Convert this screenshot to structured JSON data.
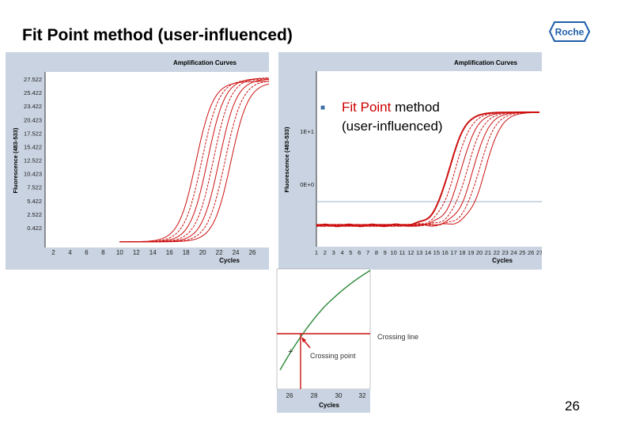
{
  "slide": {
    "title": "Fit Point method (user-influenced)",
    "page_number": "26",
    "logo_text": "Roche",
    "bullet": {
      "part1": "Fit Point",
      "part2": " method",
      "line2": "(user-influenced)"
    },
    "colors": {
      "curve": "#cc1111",
      "panel_bg": "#c9d3e1",
      "plot_bg": "#ffffff",
      "title_text": "#000000",
      "logo": "#1f5fa8"
    }
  },
  "chart_data": [
    {
      "type": "line",
      "title": "Amplification Curves",
      "xlabel": "Cycles",
      "ylabel": "Fluorescence (483-533)",
      "x_ticks": [
        "2",
        "4",
        "6",
        "8",
        "10",
        "12",
        "14",
        "16",
        "18",
        "20",
        "22",
        "24",
        "26"
      ],
      "y_ticks": [
        "27.522",
        "25.422",
        "23.422",
        "20.423",
        "17.522",
        "15.422",
        "12.522",
        "10.423",
        "7.522",
        "5.422",
        "2.522",
        "0.422"
      ],
      "xlim": [
        1,
        28
      ],
      "ylim": [
        0,
        28
      ],
      "series_midpoints": [
        19.2,
        19.9,
        20.6,
        21.3,
        22.0,
        22.7,
        23.4
      ],
      "series_max": [
        26.5,
        26.8,
        27.0,
        27.1,
        26.9,
        26.7,
        26.4
      ],
      "baseline": 0.9,
      "grid": false
    },
    {
      "type": "line",
      "title": "Amplification Curves",
      "xlabel": "Cycles",
      "ylabel": "Fluorescence (483-533)",
      "scale": "log",
      "x_ticks": [
        "1",
        "2",
        "3",
        "4",
        "5",
        "6",
        "7",
        "8",
        "9",
        "10",
        "11",
        "12",
        "13",
        "14",
        "15",
        "16",
        "17",
        "18",
        "19",
        "20",
        "21",
        "22",
        "23",
        "24",
        "25",
        "26",
        "27"
      ],
      "y_ticks": [
        "1E+1",
        "0E+0"
      ],
      "xlim": [
        1,
        27
      ],
      "crossing_line_level": "horizontal threshold line",
      "series_midpoints": [
        16.5,
        17.2,
        17.9,
        18.6,
        19.3,
        20.0,
        20.7
      ],
      "grid": false
    },
    {
      "type": "line",
      "xlabel": "Cycles",
      "x_ticks": [
        "26",
        "28",
        "30",
        "32"
      ],
      "annotations": [
        "Crossing line",
        "Crossing point"
      ]
    }
  ]
}
